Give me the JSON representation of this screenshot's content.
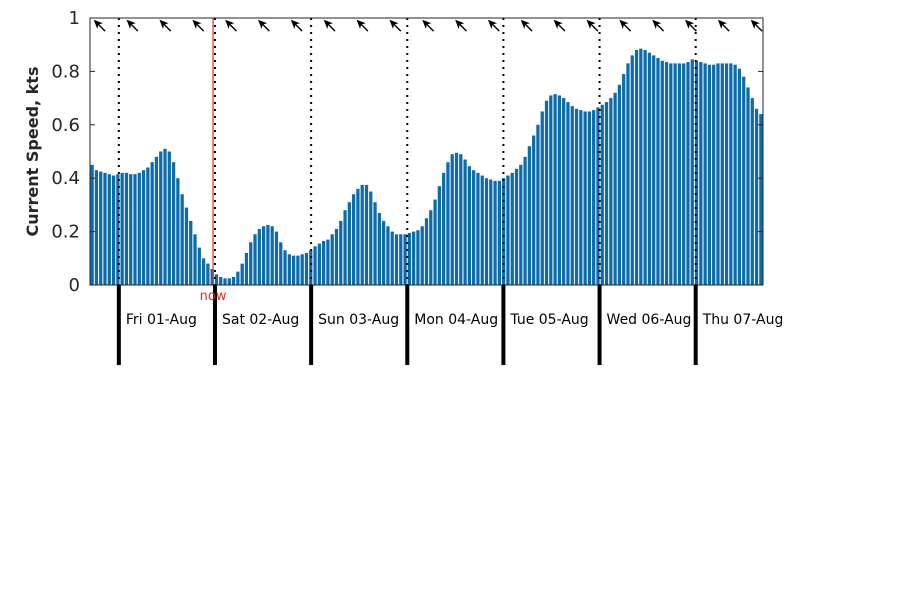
{
  "chart_data": {
    "type": "bar",
    "ylabel": "Current Speed, kts",
    "ylim": [
      0,
      1
    ],
    "yticks": [
      "0",
      "0.2",
      "0.4",
      "0.6",
      "0.8",
      "1"
    ],
    "bar_color": "#0b6bab",
    "now_color": "#e0301e",
    "now_label": "now",
    "day_labels": [
      "Fri 01-Aug",
      "Sat 02-Aug",
      "Sun 03-Aug",
      "Mon 04-Aug",
      "Tue 05-Aug",
      "Wed 06-Aug",
      "Thu 07-Aug"
    ],
    "values": [
      0.45,
      0.43,
      0.425,
      0.42,
      0.415,
      0.41,
      0.415,
      0.42,
      0.42,
      0.415,
      0.415,
      0.42,
      0.43,
      0.44,
      0.46,
      0.48,
      0.5,
      0.51,
      0.5,
      0.46,
      0.4,
      0.34,
      0.29,
      0.24,
      0.19,
      0.14,
      0.1,
      0.08,
      0.06,
      0.04,
      0.03,
      0.025,
      0.025,
      0.03,
      0.05,
      0.08,
      0.12,
      0.16,
      0.19,
      0.21,
      0.22,
      0.225,
      0.22,
      0.2,
      0.16,
      0.13,
      0.115,
      0.11,
      0.11,
      0.115,
      0.12,
      0.13,
      0.145,
      0.155,
      0.165,
      0.17,
      0.19,
      0.21,
      0.24,
      0.28,
      0.31,
      0.34,
      0.36,
      0.375,
      0.375,
      0.35,
      0.31,
      0.27,
      0.24,
      0.22,
      0.2,
      0.19,
      0.19,
      0.19,
      0.195,
      0.2,
      0.205,
      0.22,
      0.25,
      0.28,
      0.32,
      0.37,
      0.42,
      0.46,
      0.49,
      0.495,
      0.49,
      0.47,
      0.445,
      0.43,
      0.42,
      0.41,
      0.4,
      0.395,
      0.39,
      0.39,
      0.4,
      0.41,
      0.42,
      0.435,
      0.45,
      0.48,
      0.52,
      0.56,
      0.6,
      0.65,
      0.69,
      0.71,
      0.715,
      0.71,
      0.7,
      0.685,
      0.67,
      0.66,
      0.655,
      0.65,
      0.65,
      0.655,
      0.665,
      0.675,
      0.685,
      0.7,
      0.72,
      0.75,
      0.79,
      0.83,
      0.86,
      0.88,
      0.885,
      0.88,
      0.87,
      0.86,
      0.85,
      0.84,
      0.835,
      0.83,
      0.83,
      0.83,
      0.83,
      0.835,
      0.845,
      0.84,
      0.835,
      0.83,
      0.825,
      0.825,
      0.83,
      0.83,
      0.83,
      0.83,
      0.825,
      0.81,
      0.78,
      0.74,
      0.7,
      0.66,
      0.64
    ],
    "midnight_positions": [
      1,
      2,
      3,
      4,
      5,
      6
    ],
    "day_dividers_dotted": [
      0.3,
      1.3,
      2.3,
      3.3,
      4.3,
      5.3,
      6.3
    ],
    "now_position": 1.28,
    "x_span_days": 7.0,
    "direction_arrows": 21
  }
}
